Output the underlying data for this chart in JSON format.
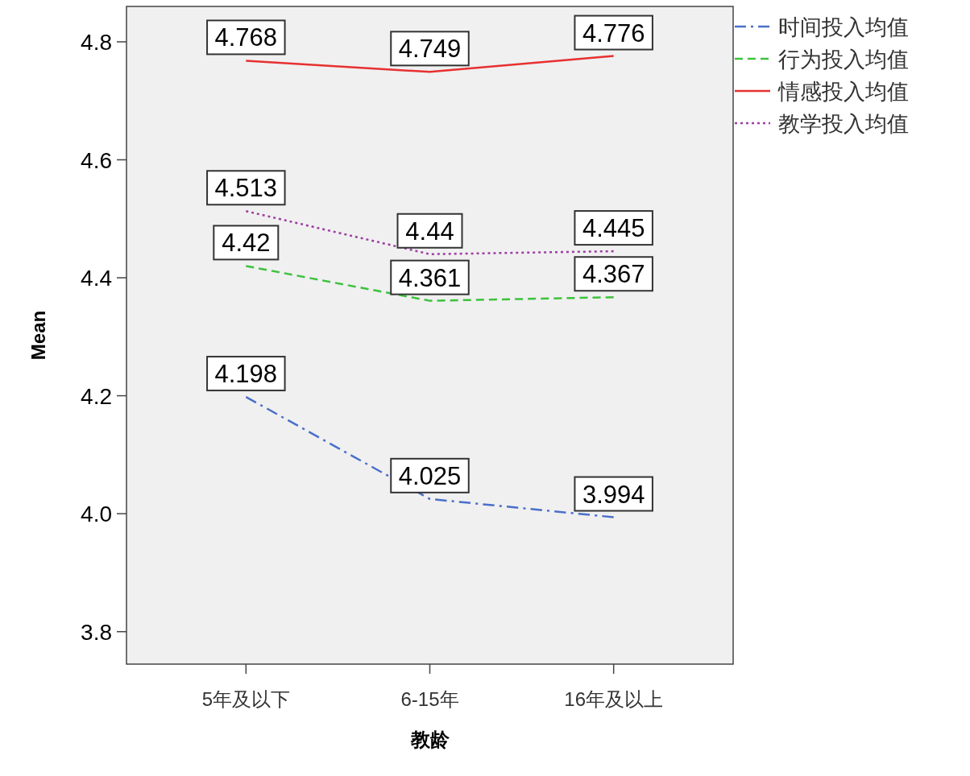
{
  "chart_data": {
    "type": "line",
    "xlabel": "教龄",
    "ylabel": "Mean",
    "categories": [
      "5年及以下",
      "6-15年",
      "16年及以上"
    ],
    "ylim": [
      3.745,
      4.86
    ],
    "yticks": [
      {
        "value": 3.8,
        "label": "3.8"
      },
      {
        "value": 4.0,
        "label": "4.0"
      },
      {
        "value": 4.2,
        "label": "4.2"
      },
      {
        "value": 4.4,
        "label": "4.4"
      },
      {
        "value": 4.6,
        "label": "4.6"
      },
      {
        "value": 4.8,
        "label": "4.8"
      }
    ],
    "grid": false,
    "legend": "right",
    "data_labels": true,
    "marker": "none",
    "series": [
      {
        "name": "时间投入均值",
        "color": "#4a6fca",
        "line_style": "dashdot",
        "values": [
          4.198,
          4.025,
          3.994
        ]
      },
      {
        "name": "行为投入均值",
        "color": "#3cc23c",
        "line_style": "dashed",
        "values": [
          4.42,
          4.361,
          4.367
        ]
      },
      {
        "name": "情感投入均值",
        "color": "#e83030",
        "line_style": "solid",
        "values": [
          4.768,
          4.749,
          4.776
        ]
      },
      {
        "name": "教学投入均值",
        "color": "#9b3fa0",
        "line_style": "dotted",
        "values": [
          4.513,
          4.44,
          4.445
        ]
      }
    ]
  }
}
